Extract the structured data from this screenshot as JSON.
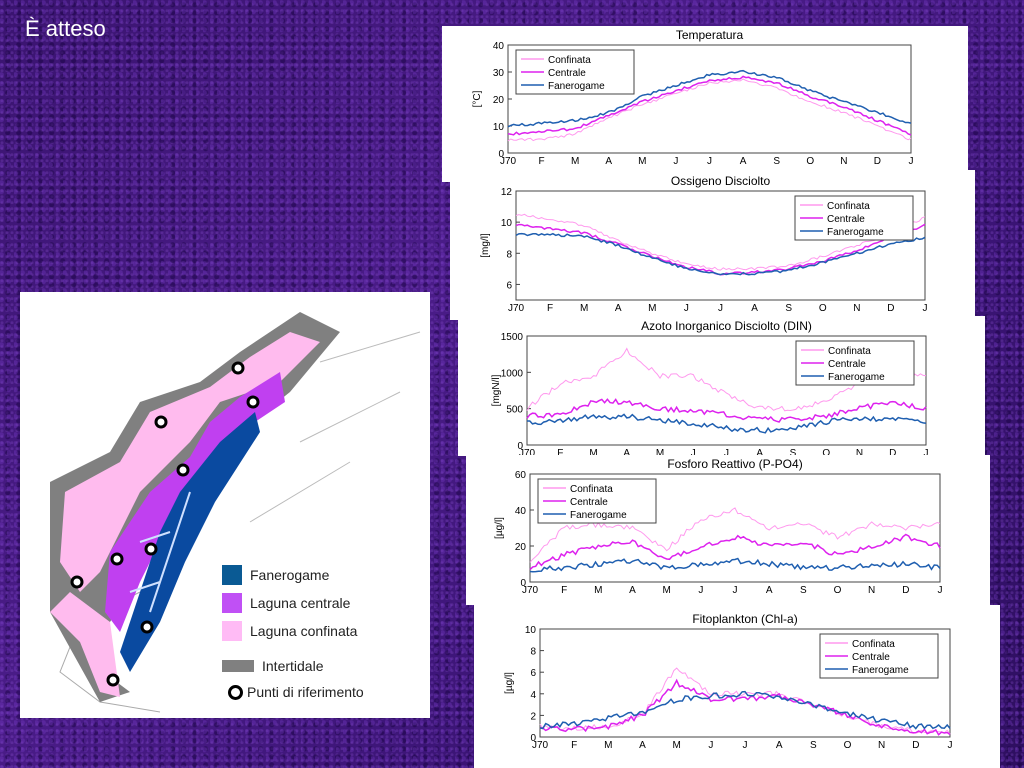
{
  "slide_title": "È atteso",
  "colors": {
    "confinata": "#ff99ee",
    "centrale": "#dd22ee",
    "fanerogame": "#1f5fb0",
    "map_fanerogame": "#0a4aa0",
    "map_centrale": "#c040f0",
    "map_confinata": "#ffbbee",
    "map_intertidale": "#808080"
  },
  "map_legend": {
    "fanerogame": "Fanerogame",
    "centrale": "Laguna centrale",
    "confinata": "Laguna confinata",
    "intertidale": "Intertidale",
    "punti": "Punti di riferimento"
  },
  "chart_data": [
    {
      "type": "line",
      "title": "Temperatura",
      "ylabel": "[°C]",
      "ylim": [
        0,
        40
      ],
      "yticks": [
        0,
        10,
        20,
        30,
        40
      ],
      "categories": [
        "J70",
        "F",
        "M",
        "A",
        "M",
        "J",
        "J",
        "A",
        "S",
        "O",
        "N",
        "D",
        "J"
      ],
      "legend": "top-left",
      "series": [
        {
          "name": "Confinata",
          "values": [
            5,
            5,
            7,
            13,
            18,
            22,
            26,
            27,
            24,
            19,
            15,
            10,
            5
          ]
        },
        {
          "name": "Centrale",
          "values": [
            7,
            8,
            9,
            14,
            19,
            23,
            27,
            28,
            26,
            21,
            17,
            12,
            7
          ]
        },
        {
          "name": "Fanerogame",
          "values": [
            10,
            11,
            12,
            15,
            21,
            25,
            29,
            30,
            28,
            23,
            19,
            15,
            11
          ]
        }
      ]
    },
    {
      "type": "line",
      "title": "Ossigeno Disciolto",
      "ylabel": "[mg/l]",
      "ylim": [
        5,
        12
      ],
      "yticks": [
        6,
        8,
        10,
        12
      ],
      "categories": [
        "J70",
        "F",
        "M",
        "A",
        "M",
        "J",
        "J",
        "A",
        "S",
        "O",
        "N",
        "D",
        "J"
      ],
      "legend": "top-right",
      "series": [
        {
          "name": "Confinata",
          "values": [
            10.5,
            10.2,
            9.8,
            8.8,
            8,
            7.3,
            7,
            7,
            7.2,
            7.8,
            8.5,
            9.3,
            10.3
          ]
        },
        {
          "name": "Centrale",
          "values": [
            9.8,
            9.6,
            9.3,
            8.6,
            7.8,
            7.1,
            6.7,
            6.8,
            7,
            7.5,
            8.2,
            9,
            9.8
          ]
        },
        {
          "name": "Fanerogame",
          "values": [
            9.2,
            9.2,
            9.1,
            8.5,
            7.7,
            7,
            6.7,
            6.7,
            6.9,
            7.4,
            8,
            8.6,
            9
          ]
        }
      ]
    },
    {
      "type": "line",
      "title": "Azoto Inorganico Disciolto (DIN)",
      "ylabel": "[mgN/l]",
      "ylim": [
        0,
        1500
      ],
      "yticks": [
        0,
        500,
        1000,
        1500
      ],
      "categories": [
        "J70",
        "F",
        "M",
        "A",
        "M",
        "J",
        "J",
        "A",
        "S",
        "O",
        "N",
        "D",
        "J"
      ],
      "legend": "top-right",
      "series": [
        {
          "name": "Confinata",
          "values": [
            500,
            850,
            950,
            1300,
            950,
            950,
            700,
            500,
            500,
            600,
            850,
            950,
            950
          ]
        },
        {
          "name": "Centrale",
          "values": [
            400,
            420,
            600,
            600,
            500,
            480,
            420,
            350,
            350,
            400,
            500,
            600,
            500
          ]
        },
        {
          "name": "Fanerogame",
          "values": [
            300,
            330,
            390,
            390,
            340,
            300,
            230,
            200,
            220,
            320,
            360,
            360,
            310
          ]
        }
      ]
    },
    {
      "type": "line",
      "title": "Fosforo Reattivo (P-PO4)",
      "ylabel": "[µg/l]",
      "ylim": [
        0,
        60
      ],
      "yticks": [
        0,
        20,
        40,
        60
      ],
      "categories": [
        "J70",
        "F",
        "M",
        "A",
        "M",
        "J",
        "J",
        "A",
        "S",
        "O",
        "N",
        "D",
        "J"
      ],
      "legend": "top-left",
      "series": [
        {
          "name": "Confinata",
          "values": [
            12,
            30,
            32,
            30,
            18,
            35,
            40,
            30,
            32,
            25,
            32,
            30,
            33
          ]
        },
        {
          "name": "Centrale",
          "values": [
            8,
            15,
            20,
            22,
            12,
            20,
            25,
            20,
            22,
            15,
            20,
            25,
            20
          ]
        },
        {
          "name": "Fanerogame",
          "values": [
            7,
            8,
            10,
            12,
            8,
            10,
            12,
            10,
            8,
            8,
            9,
            10,
            8
          ]
        }
      ]
    },
    {
      "type": "line",
      "title": "Fitoplankton (Chl-a)",
      "ylabel": "[µg/l]",
      "ylim": [
        0,
        10
      ],
      "yticks": [
        0,
        2,
        4,
        6,
        8,
        10
      ],
      "categories": [
        "J70",
        "F",
        "M",
        "A",
        "M",
        "J",
        "J",
        "A",
        "S",
        "O",
        "N",
        "D",
        "J"
      ],
      "legend": "top-right",
      "series": [
        {
          "name": "Confinata",
          "values": [
            1,
            0.8,
            1,
            2,
            6.5,
            4,
            4,
            4,
            3,
            2,
            1,
            0.5,
            0.5
          ]
        },
        {
          "name": "Centrale",
          "values": [
            0.8,
            0.7,
            1,
            2,
            5,
            3.5,
            3.5,
            3.8,
            3,
            2,
            1,
            0.5,
            0.4
          ]
        },
        {
          "name": "Fanerogame",
          "values": [
            1,
            1.2,
            1.8,
            2.2,
            3.5,
            3.8,
            4,
            3.8,
            3,
            2.2,
            1.5,
            1,
            1
          ]
        }
      ]
    }
  ]
}
